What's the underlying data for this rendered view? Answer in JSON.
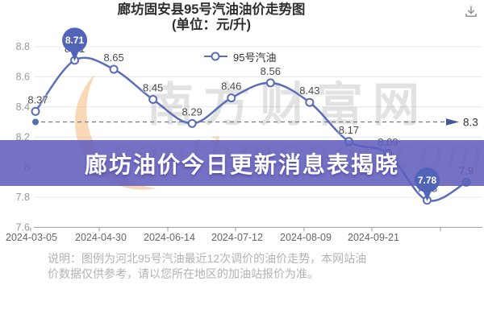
{
  "title": {
    "line1": "廊坊固安县95号汽油油价走势图",
    "line2": "(单位：元/升)"
  },
  "toolbar": {
    "download_icon": "download-icon"
  },
  "legend": {
    "label": "95号汽油"
  },
  "banner": {
    "text": "廊坊油价今日更新消息表揭晓"
  },
  "note": {
    "line1": "说明：图例为河北95号汽油最近12次调价的油价走势，本网站油",
    "line2": "价数据仅供参考，请以您所在地区的加油站报价为准。"
  },
  "watermark": {
    "text": "南方财富网",
    "script": "southmoney.com",
    "crescent_icon": "crescent-moon-watermark"
  },
  "chart_data": {
    "type": "line",
    "title": "廊坊固安县95号汽油油价走势图",
    "unit": "元/升",
    "series": [
      {
        "name": "95号汽油",
        "values": [
          8.37,
          8.71,
          8.65,
          8.45,
          8.29,
          8.46,
          8.56,
          8.43,
          8.17,
          8.09,
          7.78,
          7.9
        ],
        "labels": [
          "8.37",
          "8.71",
          "8.65",
          "8.45",
          "8.29",
          "8.46",
          "8.56",
          "8.43",
          "8.17",
          "8.09",
          "7.78",
          "7.9"
        ]
      }
    ],
    "x_labels": [
      "2024-03-05",
      "2024-04-30",
      "2024-06-14",
      "2024-07-12",
      "2024-08-09",
      "2024-09-21"
    ],
    "y_ticks": [
      "8.8",
      "8.6",
      "8.4",
      "8.2",
      "8",
      "7.8",
      "7.6"
    ],
    "ylim": [
      7.6,
      8.8
    ],
    "grid": true,
    "legend_position": "top",
    "mark_line": {
      "value": 8.3,
      "label": "8.3"
    },
    "mark_points": [
      {
        "type": "max",
        "index": 1,
        "label": "8.71"
      },
      {
        "type": "min",
        "index": 10,
        "label": "7.78"
      }
    ],
    "colors": {
      "line": "#5a6eb8",
      "marker_fill": "#ffffff",
      "pin": "#5164b8",
      "dash": "#6e7a99",
      "dash_dot": "#5470ad",
      "arrow": "#44569e",
      "grid": "#e8e8e8",
      "axis": "#999999",
      "tick_label": "#666666",
      "y_label": "#999999",
      "data_label": "#4a4a4a",
      "markline_label": "#333333"
    }
  }
}
